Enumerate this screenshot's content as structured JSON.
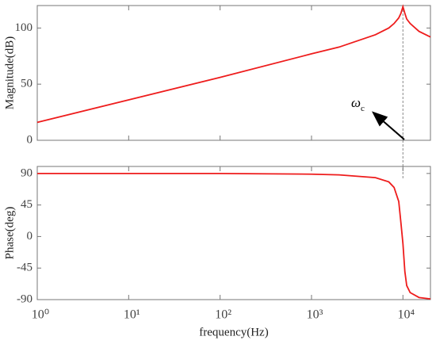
{
  "chart_data": [
    {
      "type": "line",
      "ylabel": "Magnitude(dB)",
      "xscale": "log",
      "x": [
        1,
        10,
        100,
        1000,
        2000,
        5000,
        7000,
        8000,
        9000,
        9500,
        10000,
        10500,
        11000,
        12000,
        15000,
        20000
      ],
      "series": [
        {
          "name": "Magnitude",
          "color": "#ee1c1c",
          "values": [
            16,
            36,
            56,
            77,
            83,
            94,
            100,
            104,
            109,
            113,
            119,
            113,
            108,
            104,
            97,
            92
          ]
        }
      ],
      "xlim": [
        1,
        20000
      ],
      "xticks": [
        1,
        10,
        100,
        1000,
        10000
      ],
      "ylim": [
        0,
        120
      ],
      "yticks": [
        0,
        50,
        100
      ],
      "marker_x": 10000,
      "annotation": {
        "text": "ω",
        "subscript": "c"
      }
    },
    {
      "type": "line",
      "ylabel": "Phase(deg)",
      "xlabel": "frequency(Hz)",
      "xscale": "log",
      "x": [
        1,
        10,
        100,
        1000,
        2000,
        5000,
        7000,
        8000,
        9000,
        9500,
        10000,
        10500,
        11000,
        12000,
        15000,
        20000
      ],
      "series": [
        {
          "name": "Phase",
          "color": "#ee1c1c",
          "values": [
            90,
            90,
            90,
            89,
            88,
            84,
            78,
            70,
            50,
            20,
            -10,
            -50,
            -70,
            -80,
            -87,
            -89
          ]
        }
      ],
      "xlim": [
        1,
        20000
      ],
      "xticks": [
        {
          "value": 1,
          "label": "10⁰"
        },
        {
          "value": 10,
          "label": "10¹"
        },
        {
          "value": 100,
          "label": "10²"
        },
        {
          "value": 1000,
          "label": "10³"
        },
        {
          "value": 10000,
          "label": "10⁴"
        }
      ],
      "ylim": [
        -90,
        100
      ],
      "yticks": [
        -90,
        -45,
        0,
        45,
        90
      ]
    }
  ]
}
